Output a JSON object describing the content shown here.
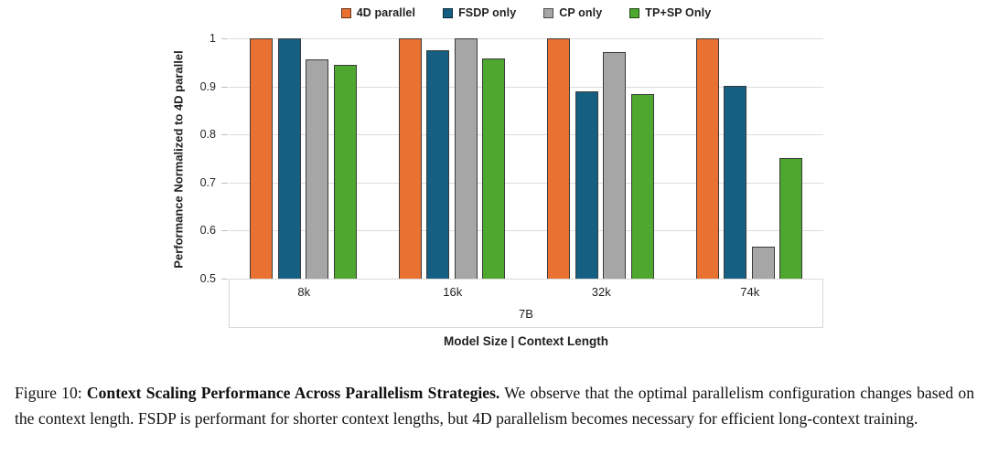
{
  "figure": {
    "caption_prefix": "Figure 10: ",
    "caption_bold": "Context Scaling Performance Across Parallelism Strategies.",
    "caption_rest": " We observe that the optimal parallelism configuration changes based on the context length. FSDP is performant for shorter context lengths, but 4D parallelism becomes necessary for efficient long-context training."
  },
  "chart_data": {
    "type": "bar",
    "title": "",
    "categories": [
      "8k",
      "16k",
      "32k",
      "74k"
    ],
    "group_label": "7B",
    "xlabel": "Model Size | Context Length",
    "ylabel": "Performance Normalized to 4D parallel",
    "ylim": [
      0.5,
      1.0
    ],
    "yticks": [
      1,
      0.9,
      0.8,
      0.7,
      0.6,
      0.5
    ],
    "ytick_labels": [
      "1",
      "0.9",
      "0.8",
      "0.7",
      "0.6",
      "0.5"
    ],
    "grid": true,
    "legend_position": "top",
    "series": [
      {
        "name": "4D parallel",
        "color": "#E97132",
        "values": [
          1.0,
          1.0,
          1.0,
          1.0
        ]
      },
      {
        "name": "FSDP only",
        "color": "#156082",
        "values": [
          1.0,
          0.976,
          0.89,
          0.902
        ]
      },
      {
        "name": "CP only",
        "color": "#A6A6A6",
        "values": [
          0.957,
          1.0,
          0.972,
          0.567
        ]
      },
      {
        "name": "TP+SP Only",
        "color": "#4EA72E",
        "values": [
          0.945,
          0.958,
          0.884,
          0.751
        ]
      }
    ]
  }
}
